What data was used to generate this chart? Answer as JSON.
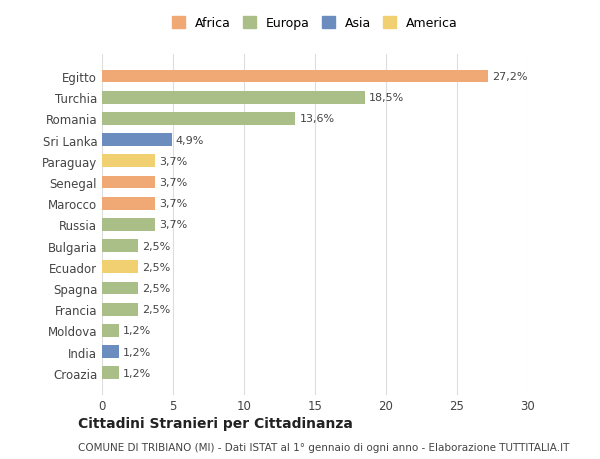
{
  "countries": [
    "Egitto",
    "Turchia",
    "Romania",
    "Sri Lanka",
    "Paraguay",
    "Senegal",
    "Marocco",
    "Russia",
    "Bulgaria",
    "Ecuador",
    "Spagna",
    "Francia",
    "Moldova",
    "India",
    "Croazia"
  ],
  "values": [
    27.2,
    18.5,
    13.6,
    4.9,
    3.7,
    3.7,
    3.7,
    3.7,
    2.5,
    2.5,
    2.5,
    2.5,
    1.2,
    1.2,
    1.2
  ],
  "labels": [
    "27,2%",
    "18,5%",
    "13,6%",
    "4,9%",
    "3,7%",
    "3,7%",
    "3,7%",
    "3,7%",
    "2,5%",
    "2,5%",
    "2,5%",
    "2,5%",
    "1,2%",
    "1,2%",
    "1,2%"
  ],
  "continents": [
    "Africa",
    "Europa",
    "Europa",
    "Asia",
    "America",
    "Africa",
    "Africa",
    "Europa",
    "Europa",
    "America",
    "Europa",
    "Europa",
    "Europa",
    "Asia",
    "Europa"
  ],
  "colors": {
    "Africa": "#F0A875",
    "Europa": "#AABF88",
    "Asia": "#6B8CBF",
    "America": "#F0D070"
  },
  "title": "Cittadini Stranieri per Cittadinanza",
  "subtitle": "COMUNE DI TRIBIANO (MI) - Dati ISTAT al 1° gennaio di ogni anno - Elaborazione TUTTITALIA.IT",
  "xlim": [
    0,
    30
  ],
  "xticks": [
    0,
    5,
    10,
    15,
    20,
    25,
    30
  ],
  "bg_color": "#ffffff",
  "bar_height": 0.6,
  "grid_color": "#dddddd",
  "legend_order": [
    "Africa",
    "Europa",
    "Asia",
    "America"
  ]
}
